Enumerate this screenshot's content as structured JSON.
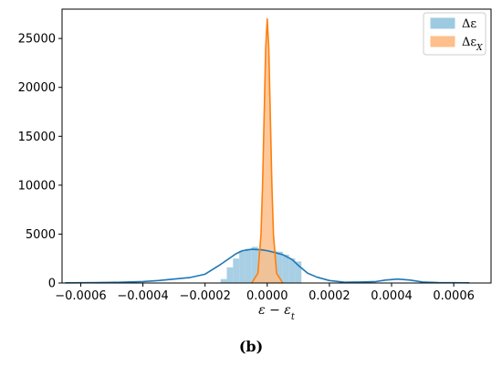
{
  "chart_data": {
    "type": "area",
    "title": "",
    "xlabel": "ε − ε_t",
    "xlabel_display": "ε − εt",
    "ylabel": "",
    "xlim": [
      -0.00066,
      0.00072
    ],
    "ylim": [
      0,
      28000
    ],
    "x_ticks": [
      -0.0006,
      -0.0004,
      -0.0002,
      0.0,
      0.0002,
      0.0004,
      0.0006
    ],
    "x_tick_labels": [
      "−0.0006",
      "−0.0004",
      "−0.0002",
      "0.0000",
      "0.0002",
      "0.0004",
      "0.0006"
    ],
    "y_ticks": [
      0,
      5000,
      10000,
      15000,
      20000,
      25000
    ],
    "y_tick_labels": [
      "0",
      "5000",
      "10000",
      "15000",
      "20000",
      "25000"
    ],
    "grid": false,
    "legend_position": "top-right",
    "series": [
      {
        "name": "Δε",
        "color": "#1f77b4",
        "hist_fill": "#9ecae1",
        "kde_x": [
          -0.00065,
          -0.0006,
          -0.00055,
          -0.0005,
          -0.00045,
          -0.0004,
          -0.00035,
          -0.0003,
          -0.00025,
          -0.0002,
          -0.00015,
          -0.0001,
          -8e-05,
          -5e-05,
          -2e-05,
          0.0,
          2e-05,
          5e-05,
          8e-05,
          0.0001,
          0.00013,
          0.00016,
          0.0002,
          0.00025,
          0.0003,
          0.00035,
          0.00038,
          0.00042,
          0.00046,
          0.0005,
          0.00055,
          0.0006,
          0.00065
        ],
        "kde_y": [
          20,
          30,
          40,
          60,
          100,
          150,
          250,
          400,
          550,
          900,
          1900,
          3000,
          3300,
          3450,
          3400,
          3300,
          3150,
          2900,
          2400,
          1800,
          1000,
          600,
          250,
          80,
          100,
          150,
          300,
          400,
          300,
          100,
          40,
          30,
          20
        ],
        "hist_bin_edges": [
          -0.00015,
          -0.00013,
          -0.00011,
          -9e-05,
          -7e-05,
          -5e-05,
          -3e-05,
          -1e-05,
          1e-05,
          3e-05,
          5e-05,
          7e-05,
          9e-05,
          0.00011
        ],
        "hist_heights": [
          400,
          1600,
          2500,
          3300,
          3500,
          3700,
          3500,
          3400,
          3300,
          3200,
          2900,
          2500,
          2200
        ]
      },
      {
        "name": "Δε_X",
        "color": "#ff7f0e",
        "hist_fill": "#fdbf8b",
        "kde_x": [
          -5e-05,
          -3e-05,
          -2e-05,
          -1.5e-05,
          -1e-05,
          -5e-06,
          0.0,
          5e-06,
          1e-05,
          1.5e-05,
          2e-05,
          3e-05,
          5e-05
        ],
        "kde_y": [
          0,
          1000,
          5000,
          10000,
          17000,
          24000,
          27000,
          24000,
          17000,
          10000,
          5000,
          1000,
          0
        ]
      }
    ]
  },
  "legend": {
    "items": [
      {
        "label_main": "Δε",
        "label_sub": ""
      },
      {
        "label_main": "Δε",
        "label_sub": "X"
      }
    ]
  },
  "caption": {
    "label": "(b)"
  }
}
